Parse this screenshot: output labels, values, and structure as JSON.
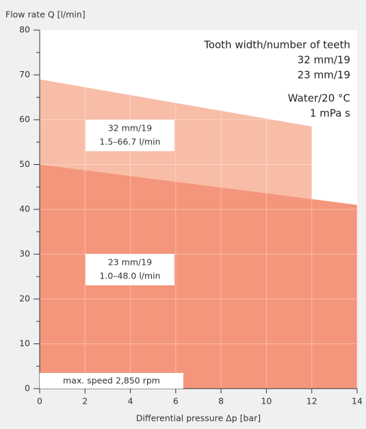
{
  "chart_data": {
    "type": "area",
    "ylabel": "Flow rate Q [l/min]",
    "xlabel": "Differential pressure Δp [bar]",
    "xlim": [
      0,
      14
    ],
    "xticks": [
      0,
      2,
      4,
      6,
      8,
      10,
      12,
      14
    ],
    "ylim": [
      0,
      80
    ],
    "yticks": [
      0,
      10,
      20,
      30,
      40,
      50,
      60,
      70,
      80
    ],
    "yticks_minor": [
      5,
      15,
      25,
      35,
      45,
      55,
      65,
      75
    ],
    "grid": true,
    "legend_title": "Tooth width/number of teeth",
    "legend": "top right",
    "series": [
      {
        "name": "32 mm/19",
        "color": "#f8bda7",
        "x": [
          0,
          12
        ],
        "values": [
          69,
          58.5
        ]
      },
      {
        "name": "23 mm/19",
        "color": "#f4967b",
        "x": [
          0,
          14
        ],
        "values": [
          50,
          41
        ]
      }
    ],
    "medium": [
      "Water/20 °C",
      "1 mPa s"
    ],
    "range_labels": [
      "1.5–66.7 l/min",
      "1.0–48.0 l/min"
    ],
    "note": "max. speed 2,850 rpm"
  }
}
